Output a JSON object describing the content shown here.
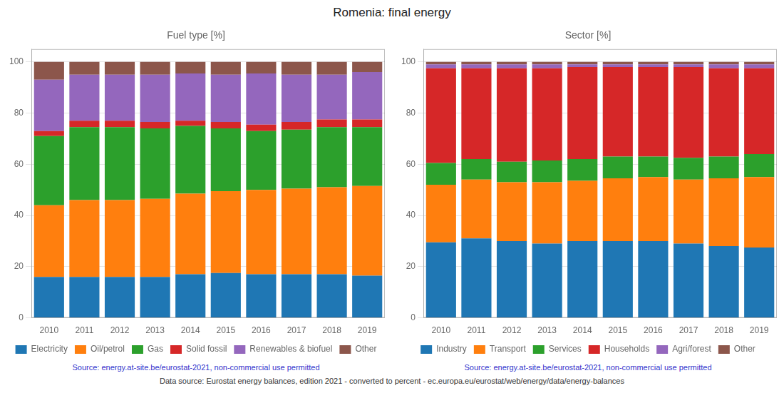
{
  "title": "Romenia: final energy",
  "annotations": [
    "Data source: Eurostat energy balances, edition 2021 - converted to percent - ec.europa.eu/eurostat/web/energy/data/energy-balances"
  ],
  "chart_data": [
    {
      "type": "bar",
      "stacked": true,
      "title": "Fuel type [%]",
      "categories": [
        "2010",
        "2011",
        "2012",
        "2013",
        "2014",
        "2015",
        "2016",
        "2017",
        "2018",
        "2019"
      ],
      "series": [
        {
          "name": "Electricity",
          "color": "#1f77b4",
          "values": [
            16.0,
            16.0,
            16.0,
            16.0,
            17.0,
            17.5,
            17.0,
            17.0,
            17.0,
            16.5
          ]
        },
        {
          "name": "Oil/petrol",
          "color": "#ff7f0e",
          "values": [
            28.0,
            30.0,
            30.0,
            30.5,
            31.5,
            32.0,
            33.0,
            33.5,
            34.0,
            35.0
          ]
        },
        {
          "name": "Gas",
          "color": "#2ca02c",
          "values": [
            27.0,
            28.5,
            28.5,
            27.5,
            26.5,
            24.5,
            23.0,
            23.0,
            23.5,
            23.0
          ]
        },
        {
          "name": "Solid fossil",
          "color": "#d62728",
          "values": [
            2.0,
            2.5,
            2.5,
            2.5,
            2.0,
            2.5,
            2.5,
            3.0,
            3.0,
            3.0
          ]
        },
        {
          "name": "Renewables & biofuel",
          "color": "#9467bd",
          "values": [
            20.0,
            18.0,
            18.0,
            18.5,
            18.5,
            18.5,
            20.0,
            18.5,
            17.5,
            18.5
          ]
        },
        {
          "name": "Other",
          "color": "#8c564b",
          "values": [
            7.0,
            5.0,
            5.0,
            5.0,
            4.5,
            5.0,
            4.5,
            5.0,
            5.0,
            4.0
          ]
        }
      ],
      "ylim": [
        0,
        105
      ],
      "yticks": [
        0,
        20,
        40,
        60,
        80,
        100
      ],
      "grid": true,
      "legend": "bottom",
      "annotations": [
        "Source: energy.at-site.be/eurostat-2021, non-commercial use permitted"
      ]
    },
    {
      "type": "bar",
      "stacked": true,
      "title": "Sector [%]",
      "categories": [
        "2010",
        "2011",
        "2012",
        "2013",
        "2014",
        "2015",
        "2016",
        "2017",
        "2018",
        "2019"
      ],
      "series": [
        {
          "name": "Industry",
          "color": "#1f77b4",
          "values": [
            29.5,
            31.0,
            30.0,
            29.0,
            30.0,
            30.0,
            30.0,
            29.0,
            28.0,
            27.5
          ]
        },
        {
          "name": "Transport",
          "color": "#ff7f0e",
          "values": [
            22.5,
            23.0,
            23.0,
            24.0,
            23.5,
            24.5,
            25.0,
            25.0,
            26.5,
            27.5
          ]
        },
        {
          "name": "Services",
          "color": "#2ca02c",
          "values": [
            8.5,
            8.0,
            8.0,
            8.5,
            8.5,
            8.5,
            8.0,
            8.5,
            8.5,
            9.0
          ]
        },
        {
          "name": "Households",
          "color": "#d62728",
          "values": [
            37.0,
            35.5,
            36.5,
            36.0,
            36.0,
            35.0,
            35.0,
            35.5,
            34.5,
            33.5
          ]
        },
        {
          "name": "Agri/forest",
          "color": "#9467bd",
          "values": [
            1.5,
            1.5,
            1.5,
            1.5,
            1.0,
            1.0,
            1.0,
            1.0,
            1.5,
            1.5
          ]
        },
        {
          "name": "Other",
          "color": "#8c564b",
          "values": [
            1.0,
            1.0,
            1.0,
            1.0,
            1.0,
            1.0,
            1.0,
            1.0,
            1.0,
            1.0
          ]
        }
      ],
      "ylim": [
        0,
        105
      ],
      "yticks": [
        0,
        20,
        40,
        60,
        80,
        100
      ],
      "grid": true,
      "legend": "bottom",
      "annotations": [
        "Source: energy.at-site.be/eurostat-2021, non-commercial use permitted"
      ]
    }
  ]
}
